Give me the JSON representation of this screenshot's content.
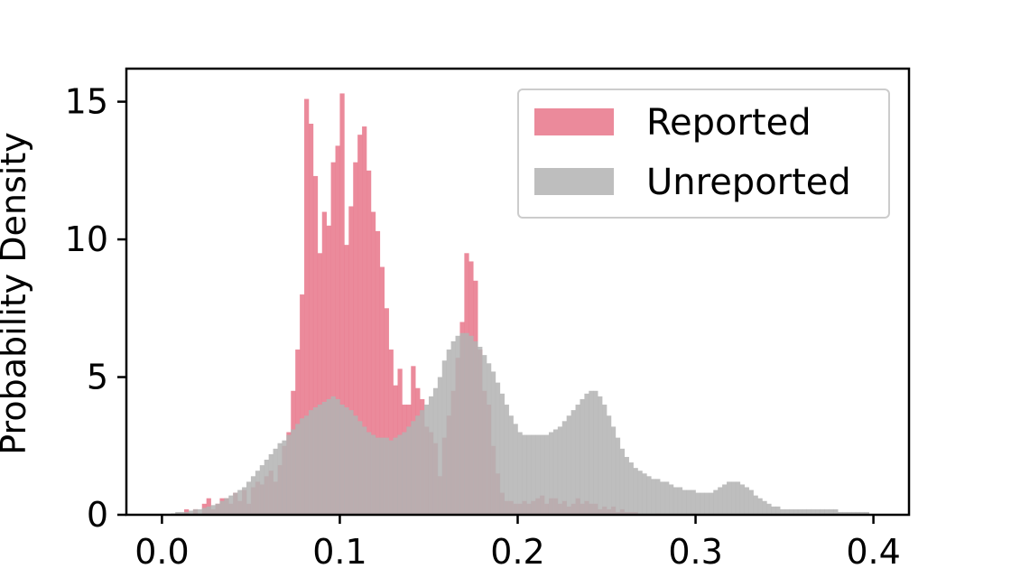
{
  "chart_data": {
    "type": "histogram",
    "title": "",
    "xlabel": "",
    "ylabel": "Probability Density",
    "xlim": [
      -0.02,
      0.42
    ],
    "ylim": [
      0,
      16.2
    ],
    "xticks": [
      0.0,
      0.1,
      0.2,
      0.3,
      0.4
    ],
    "xtick_labels": [
      "0.0",
      "0.1",
      "0.2",
      "0.3",
      "0.4"
    ],
    "yticks": [
      0,
      5,
      10,
      15
    ],
    "ytick_labels": [
      "0",
      "5",
      "10",
      "15"
    ],
    "grid": false,
    "legend_position": "top-right",
    "bin_start": 0.0,
    "bin_width": 0.0025,
    "series": [
      {
        "name": "Reported",
        "color": "#e8758a",
        "values": [
          0,
          0,
          0,
          0,
          0,
          0.2,
          0,
          0.2,
          0,
          0.4,
          0.6,
          0.2,
          0.4,
          0.6,
          0.6,
          0.4,
          0.8,
          0.5,
          0.9,
          0.4,
          1.0,
          1.2,
          1.1,
          1.4,
          1.6,
          1.2,
          1.8,
          2.5,
          3.0,
          4.5,
          6.0,
          8.0,
          15.1,
          14.2,
          12.3,
          9.5,
          11.0,
          10.5,
          12.8,
          13.4,
          15.3,
          9.8,
          11.2,
          12.8,
          13.8,
          14.1,
          12.5,
          11.0,
          10.3,
          9.0,
          7.5,
          6.0,
          4.7,
          5.3,
          4.0,
          4.0,
          5.4,
          4.6,
          4.2,
          3.2,
          3.0,
          2.6,
          1.4,
          2.8,
          3.6,
          4.5,
          5.7,
          7.0,
          9.5,
          9.2,
          8.5,
          6.0,
          4.5,
          4.0,
          2.5,
          1.5,
          0.8,
          0.5,
          0.5,
          0.4,
          0.4,
          0.5,
          0.4,
          0.5,
          0.6,
          0.7,
          0.4,
          0.6,
          0.6,
          0.4,
          0.5,
          0.3,
          0.4,
          0.6,
          0.4,
          0.5,
          0.4,
          0.4,
          0.2,
          0.3,
          0.2,
          0.3,
          0.1,
          0.2,
          0.1,
          0.1,
          0.1,
          0,
          0,
          0,
          0,
          0.05,
          0,
          0,
          0,
          0,
          0,
          0,
          0,
          0.05,
          0,
          0,
          0,
          0,
          0,
          0,
          0,
          0,
          0,
          0,
          0,
          0,
          0,
          0,
          0,
          0,
          0,
          0,
          0,
          0,
          0,
          0,
          0,
          0,
          0,
          0,
          0,
          0,
          0,
          0,
          0,
          0,
          0,
          0,
          0,
          0,
          0,
          0,
          0,
          0,
          0,
          0,
          0,
          0,
          0,
          0,
          0,
          0,
          0,
          0
        ]
      },
      {
        "name": "Unreported",
        "color": "#b3b3b3",
        "values": [
          0,
          0,
          0.05,
          0.1,
          0.1,
          0.1,
          0.15,
          0.2,
          0.2,
          0.25,
          0.3,
          0.35,
          0.4,
          0.5,
          0.6,
          0.7,
          0.8,
          0.9,
          1.0,
          1.2,
          1.4,
          1.6,
          1.8,
          2.0,
          2.2,
          2.4,
          2.6,
          2.7,
          2.9,
          3.1,
          3.3,
          3.5,
          3.6,
          3.8,
          3.9,
          4.0,
          4.1,
          4.2,
          4.3,
          4.2,
          4.0,
          3.9,
          3.8,
          3.6,
          3.4,
          3.2,
          3.0,
          2.9,
          2.8,
          2.8,
          2.8,
          2.7,
          2.8,
          2.9,
          3.0,
          3.2,
          3.4,
          3.6,
          3.8,
          4.0,
          4.3,
          4.6,
          5.0,
          5.6,
          6.0,
          6.3,
          6.5,
          6.6,
          6.6,
          6.5,
          6.3,
          6.1,
          5.8,
          5.5,
          5.2,
          4.8,
          4.4,
          4.0,
          3.6,
          3.3,
          3.0,
          2.9,
          2.9,
          2.9,
          2.9,
          2.9,
          2.9,
          3.0,
          3.1,
          3.2,
          3.4,
          3.6,
          3.8,
          4.0,
          4.2,
          4.4,
          4.5,
          4.5,
          4.3,
          4.0,
          3.6,
          3.2,
          2.8,
          2.4,
          2.1,
          1.9,
          1.7,
          1.6,
          1.5,
          1.4,
          1.3,
          1.3,
          1.2,
          1.2,
          1.1,
          1.0,
          1.0,
          0.9,
          0.9,
          0.9,
          0.8,
          0.8,
          0.8,
          0.8,
          0.9,
          1.0,
          1.1,
          1.2,
          1.2,
          1.2,
          1.1,
          1.0,
          0.9,
          0.7,
          0.6,
          0.5,
          0.4,
          0.3,
          0.3,
          0.2,
          0.2,
          0.2,
          0.2,
          0.2,
          0.2,
          0.2,
          0.2,
          0.2,
          0.2,
          0.2,
          0.2,
          0.2,
          0.1,
          0.1,
          0.1,
          0.1,
          0.1,
          0.1,
          0.1
        ]
      }
    ]
  }
}
